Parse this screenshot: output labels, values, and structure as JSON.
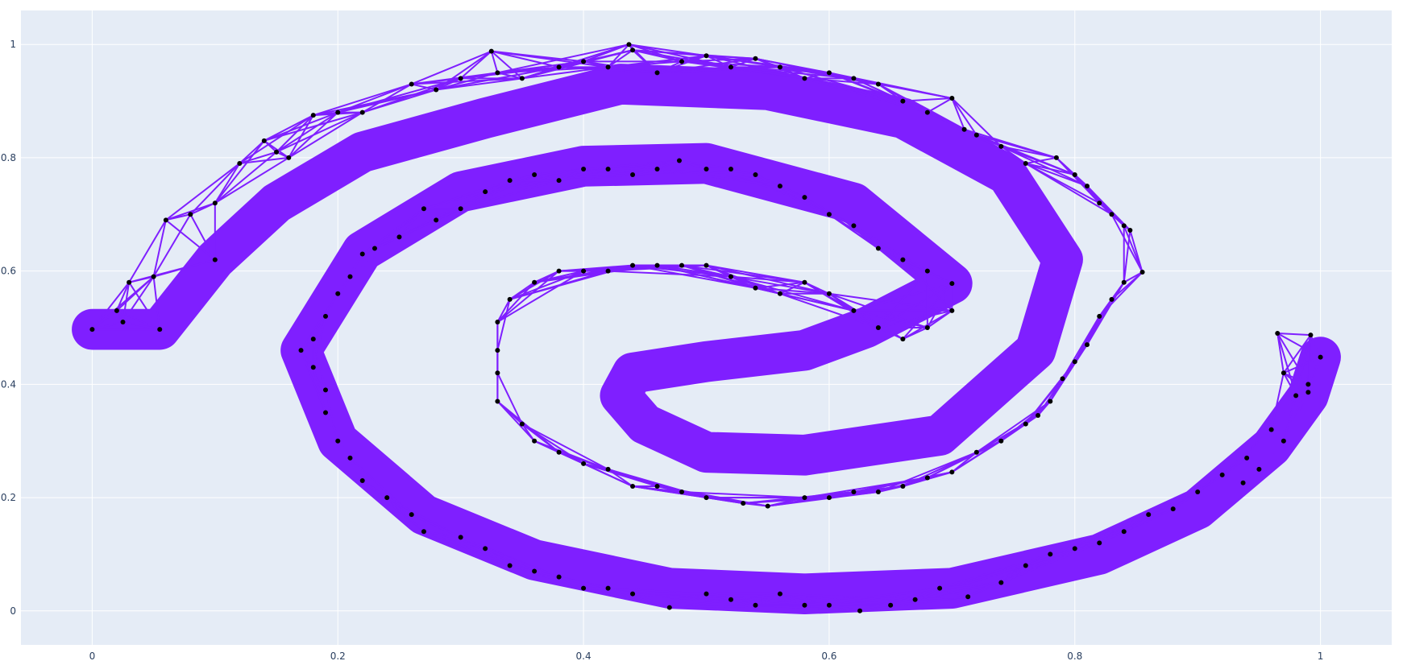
{
  "chart_data": {
    "type": "scatter",
    "title": "",
    "xlabel": "",
    "ylabel": "",
    "xlim": [
      -0.058,
      1.058
    ],
    "ylim": [
      -0.06,
      1.06
    ],
    "x_ticks": [
      0,
      0.2,
      0.4,
      0.6,
      0.8,
      1
    ],
    "x_tick_labels": [
      "0",
      "0.2",
      "0.4",
      "0.6",
      "0.8",
      "1"
    ],
    "y_ticks": [
      0,
      0.2,
      0.4,
      0.6,
      0.8,
      1
    ],
    "y_tick_labels": [
      "0",
      "0.2",
      "0.4",
      "0.6",
      "0.8",
      "1"
    ],
    "grid": true,
    "legend": "none",
    "colors": {
      "plot_bg": "#e5ecf6",
      "grid": "#ffffff",
      "band": "#7f1fff",
      "marker": "#000000",
      "tick_text": "#2a3f5f"
    },
    "band_series": [
      {
        "arm": "outer-left",
        "points": [
          [
            0.0,
            0.497
          ],
          [
            0.055,
            0.497
          ],
          [
            0.1,
            0.62
          ],
          [
            0.15,
            0.72
          ],
          [
            0.22,
            0.81
          ],
          [
            0.32,
            0.87
          ],
          [
            0.43,
            0.93
          ],
          [
            0.55,
            0.92
          ],
          [
            0.66,
            0.87
          ],
          [
            0.745,
            0.77
          ],
          [
            0.79,
            0.62
          ],
          [
            0.768,
            0.46
          ],
          [
            0.69,
            0.31
          ],
          [
            0.58,
            0.275
          ],
          [
            0.5,
            0.28
          ],
          [
            0.45,
            0.33
          ],
          [
            0.43,
            0.38
          ],
          [
            0.44,
            0.42
          ],
          [
            0.5,
            0.44
          ],
          [
            0.58,
            0.46
          ],
          [
            0.63,
            0.5
          ],
          [
            0.7,
            0.578
          ],
          [
            0.62,
            0.72
          ],
          [
            0.5,
            0.79
          ],
          [
            0.4,
            0.785
          ],
          [
            0.3,
            0.74
          ],
          [
            0.22,
            0.635
          ],
          [
            0.17,
            0.46
          ],
          [
            0.2,
            0.3
          ],
          [
            0.27,
            0.17
          ],
          [
            0.36,
            0.09
          ],
          [
            0.47,
            0.04
          ],
          [
            0.58,
            0.03
          ],
          [
            0.7,
            0.04
          ],
          [
            0.82,
            0.1
          ],
          [
            0.9,
            0.18
          ],
          [
            0.96,
            0.29
          ],
          [
            0.99,
            0.38
          ],
          [
            1.0,
            0.448
          ]
        ],
        "width": 0.072
      }
    ],
    "points": [
      [
        0.0,
        0.497
      ],
      [
        0.02,
        0.53
      ],
      [
        0.025,
        0.51
      ],
      [
        0.03,
        0.58
      ],
      [
        0.055,
        0.497
      ],
      [
        0.05,
        0.59
      ],
      [
        0.06,
        0.69
      ],
      [
        0.08,
        0.7
      ],
      [
        0.1,
        0.62
      ],
      [
        0.1,
        0.72
      ],
      [
        0.12,
        0.79
      ],
      [
        0.14,
        0.83
      ],
      [
        0.15,
        0.81
      ],
      [
        0.16,
        0.8
      ],
      [
        0.18,
        0.875
      ],
      [
        0.2,
        0.88
      ],
      [
        0.22,
        0.88
      ],
      [
        0.26,
        0.93
      ],
      [
        0.28,
        0.92
      ],
      [
        0.3,
        0.94
      ],
      [
        0.325,
        0.988
      ],
      [
        0.33,
        0.95
      ],
      [
        0.35,
        0.94
      ],
      [
        0.38,
        0.96
      ],
      [
        0.4,
        0.97
      ],
      [
        0.42,
        0.96
      ],
      [
        0.437,
        1.0
      ],
      [
        0.44,
        0.99
      ],
      [
        0.46,
        0.95
      ],
      [
        0.48,
        0.97
      ],
      [
        0.5,
        0.98
      ],
      [
        0.52,
        0.96
      ],
      [
        0.54,
        0.975
      ],
      [
        0.56,
        0.96
      ],
      [
        0.58,
        0.94
      ],
      [
        0.6,
        0.95
      ],
      [
        0.62,
        0.94
      ],
      [
        0.64,
        0.93
      ],
      [
        0.66,
        0.9
      ],
      [
        0.68,
        0.88
      ],
      [
        0.7,
        0.905
      ],
      [
        0.71,
        0.85
      ],
      [
        0.72,
        0.84
      ],
      [
        0.74,
        0.82
      ],
      [
        0.76,
        0.79
      ],
      [
        0.785,
        0.8
      ],
      [
        0.8,
        0.77
      ],
      [
        0.81,
        0.75
      ],
      [
        0.82,
        0.72
      ],
      [
        0.83,
        0.7
      ],
      [
        0.84,
        0.68
      ],
      [
        0.845,
        0.672
      ],
      [
        0.855,
        0.598
      ],
      [
        0.84,
        0.58
      ],
      [
        0.83,
        0.55
      ],
      [
        0.82,
        0.52
      ],
      [
        0.81,
        0.47
      ],
      [
        0.8,
        0.44
      ],
      [
        0.79,
        0.41
      ],
      [
        0.78,
        0.37
      ],
      [
        0.77,
        0.345
      ],
      [
        0.76,
        0.33
      ],
      [
        0.74,
        0.3
      ],
      [
        0.72,
        0.28
      ],
      [
        0.7,
        0.245
      ],
      [
        0.68,
        0.235
      ],
      [
        0.66,
        0.22
      ],
      [
        0.64,
        0.21
      ],
      [
        0.62,
        0.21
      ],
      [
        0.6,
        0.2
      ],
      [
        0.58,
        0.2
      ],
      [
        0.55,
        0.185
      ],
      [
        0.53,
        0.19
      ],
      [
        0.5,
        0.2
      ],
      [
        0.48,
        0.21
      ],
      [
        0.46,
        0.22
      ],
      [
        0.44,
        0.22
      ],
      [
        0.42,
        0.25
      ],
      [
        0.4,
        0.26
      ],
      [
        0.38,
        0.28
      ],
      [
        0.36,
        0.3
      ],
      [
        0.35,
        0.33
      ],
      [
        0.33,
        0.37
      ],
      [
        0.33,
        0.42
      ],
      [
        0.33,
        0.46
      ],
      [
        0.33,
        0.51
      ],
      [
        0.34,
        0.55
      ],
      [
        0.36,
        0.58
      ],
      [
        0.38,
        0.6
      ],
      [
        0.4,
        0.6
      ],
      [
        0.42,
        0.6
      ],
      [
        0.44,
        0.61
      ],
      [
        0.46,
        0.61
      ],
      [
        0.48,
        0.61
      ],
      [
        0.5,
        0.61
      ],
      [
        0.52,
        0.59
      ],
      [
        0.54,
        0.57
      ],
      [
        0.56,
        0.56
      ],
      [
        0.58,
        0.58
      ],
      [
        0.6,
        0.56
      ],
      [
        0.62,
        0.53
      ],
      [
        0.64,
        0.5
      ],
      [
        0.66,
        0.48
      ],
      [
        0.68,
        0.5
      ],
      [
        0.7,
        0.53
      ],
      [
        0.7,
        0.578
      ],
      [
        0.68,
        0.6
      ],
      [
        0.66,
        0.62
      ],
      [
        0.64,
        0.64
      ],
      [
        0.62,
        0.68
      ],
      [
        0.6,
        0.7
      ],
      [
        0.58,
        0.73
      ],
      [
        0.56,
        0.75
      ],
      [
        0.54,
        0.77
      ],
      [
        0.52,
        0.78
      ],
      [
        0.5,
        0.78
      ],
      [
        0.478,
        0.795
      ],
      [
        0.46,
        0.78
      ],
      [
        0.44,
        0.77
      ],
      [
        0.42,
        0.78
      ],
      [
        0.4,
        0.78
      ],
      [
        0.38,
        0.76
      ],
      [
        0.36,
        0.77
      ],
      [
        0.34,
        0.76
      ],
      [
        0.32,
        0.74
      ],
      [
        0.3,
        0.71
      ],
      [
        0.28,
        0.69
      ],
      [
        0.27,
        0.71
      ],
      [
        0.25,
        0.66
      ],
      [
        0.23,
        0.64
      ],
      [
        0.22,
        0.63
      ],
      [
        0.21,
        0.59
      ],
      [
        0.2,
        0.56
      ],
      [
        0.19,
        0.52
      ],
      [
        0.18,
        0.48
      ],
      [
        0.17,
        0.46
      ],
      [
        0.18,
        0.43
      ],
      [
        0.19,
        0.39
      ],
      [
        0.19,
        0.35
      ],
      [
        0.2,
        0.3
      ],
      [
        0.21,
        0.27
      ],
      [
        0.22,
        0.23
      ],
      [
        0.24,
        0.2
      ],
      [
        0.26,
        0.17
      ],
      [
        0.27,
        0.14
      ],
      [
        0.3,
        0.13
      ],
      [
        0.32,
        0.11
      ],
      [
        0.34,
        0.08
      ],
      [
        0.36,
        0.07
      ],
      [
        0.38,
        0.06
      ],
      [
        0.4,
        0.04
      ],
      [
        0.42,
        0.04
      ],
      [
        0.44,
        0.03
      ],
      [
        0.47,
        0.006
      ],
      [
        0.5,
        0.03
      ],
      [
        0.52,
        0.02
      ],
      [
        0.54,
        0.01
      ],
      [
        0.56,
        0.03
      ],
      [
        0.58,
        0.01
      ],
      [
        0.6,
        0.01
      ],
      [
        0.625,
        0.0
      ],
      [
        0.65,
        0.01
      ],
      [
        0.67,
        0.02
      ],
      [
        0.69,
        0.04
      ],
      [
        0.713,
        0.025
      ],
      [
        0.74,
        0.05
      ],
      [
        0.76,
        0.08
      ],
      [
        0.78,
        0.1
      ],
      [
        0.8,
        0.11
      ],
      [
        0.82,
        0.12
      ],
      [
        0.84,
        0.14
      ],
      [
        0.86,
        0.17
      ],
      [
        0.88,
        0.18
      ],
      [
        0.9,
        0.21
      ],
      [
        0.92,
        0.24
      ],
      [
        0.94,
        0.27
      ],
      [
        0.96,
        0.32
      ],
      [
        0.965,
        0.49
      ],
      [
        0.97,
        0.42
      ],
      [
        0.98,
        0.38
      ],
      [
        0.99,
        0.4
      ],
      [
        0.992,
        0.487
      ],
      [
        1.0,
        0.448
      ],
      [
        0.99,
        0.386
      ],
      [
        0.97,
        0.3
      ],
      [
        0.95,
        0.25
      ],
      [
        0.937,
        0.226
      ]
    ]
  }
}
